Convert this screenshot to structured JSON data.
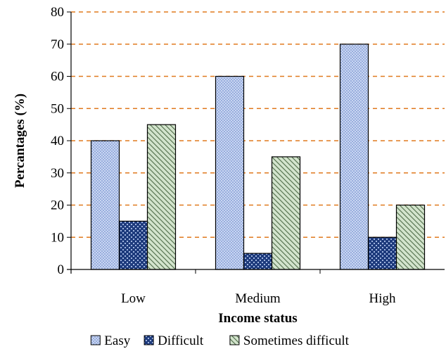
{
  "chart_data": {
    "type": "bar",
    "xlabel": "Income status",
    "ylabel": "Percantages (%)",
    "categories": [
      "Low",
      "Medium",
      "High"
    ],
    "ylim": [
      0,
      80
    ],
    "yticks": [
      0,
      10,
      20,
      30,
      40,
      50,
      60,
      70,
      80
    ],
    "grid": true,
    "grid_style": "dashed",
    "grid_color": "#e07a1f",
    "legend_position": "bottom",
    "series": [
      {
        "name": "Easy",
        "values": [
          40,
          60,
          70
        ],
        "color": "#b9c9ec",
        "pattern": "dots"
      },
      {
        "name": "Difficult",
        "values": [
          15,
          5,
          10
        ],
        "color": "#1f3f86",
        "pattern": "checker"
      },
      {
        "name": "Sometimes difficult",
        "values": [
          45,
          35,
          20
        ],
        "color": "#bfd6b8",
        "pattern": "diagonal"
      }
    ]
  }
}
